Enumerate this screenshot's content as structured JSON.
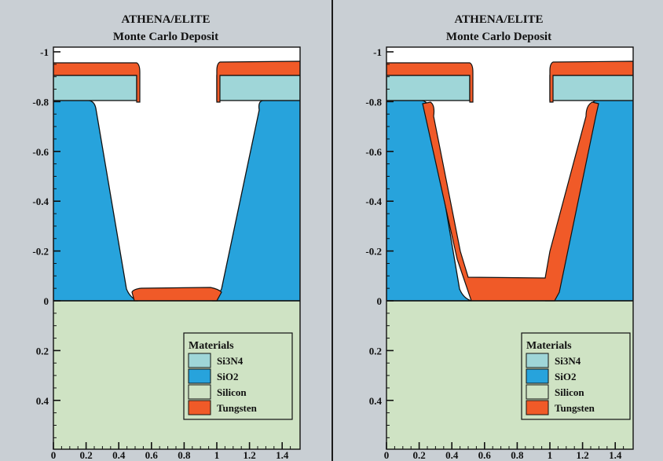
{
  "panels": [
    {
      "title": "ATHENA/ELITE",
      "subtitle": "Monte Carlo Deposit",
      "variant": "thin"
    },
    {
      "title": "ATHENA/ELITE",
      "subtitle": "Monte Carlo Deposit",
      "variant": "thick"
    }
  ],
  "y_ticks": [
    "-1",
    "-0.8",
    "-0.6",
    "-0.4",
    "-0.2",
    "0",
    "0.2",
    "0.4"
  ],
  "x_ticks": [
    "0",
    "0.2",
    "0.4",
    "0.6",
    "0.8",
    "1",
    "1.2",
    "1.4"
  ],
  "legend": {
    "title": "Materials",
    "items": [
      {
        "label": "Si3N4",
        "color": "#9fd6d8"
      },
      {
        "label": "SiO2",
        "color": "#27a3dc"
      },
      {
        "label": "Silicon",
        "color": "#cfe3c4"
      },
      {
        "label": "Tungsten",
        "color": "#f05a28"
      }
    ]
  }
}
